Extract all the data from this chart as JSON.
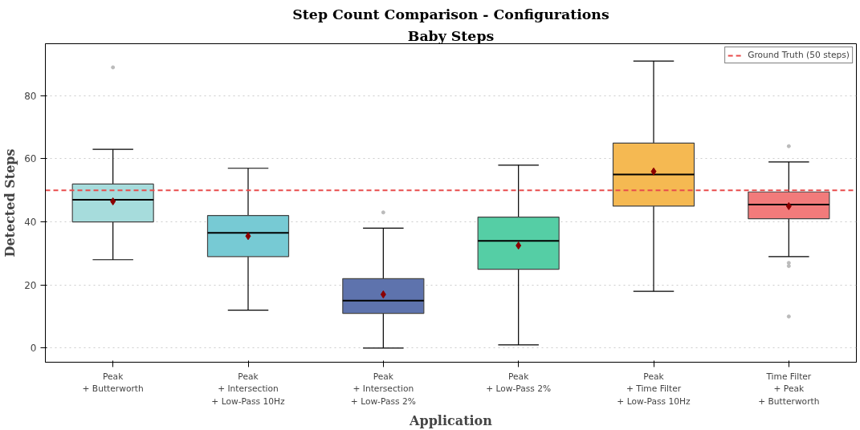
{
  "chart_data": {
    "type": "box",
    "title": "Step Count Comparison - Configurations",
    "subtitle": "Baby Steps",
    "xlabel": "Application",
    "ylabel": "Detected Steps",
    "categories": [
      "Peak\n+ Butterworth",
      "Peak\n+ Intersection\n+ Low-Pass 10Hz",
      "Peak\n+ Intersection\n+ Low-Pass 2%",
      "Peak\n+ Low-Pass 2%",
      "Peak\n+ Time Filter\n+ Low-Pass 10Hz",
      "Time Filter\n+ Peak\n+ Butterworth"
    ],
    "colors": [
      "#a6dcdc",
      "#77cad4",
      "#5e73ad",
      "#55cea5",
      "#f5b952",
      "#f27b7b"
    ],
    "boxes": [
      {
        "low": 28,
        "q1": 40,
        "median": 47,
        "q3": 52,
        "high": 63,
        "mean": 46.5,
        "outliers": [
          89
        ]
      },
      {
        "low": 12,
        "q1": 29,
        "median": 36.5,
        "q3": 42,
        "high": 57,
        "mean": 35.5
      },
      {
        "low": 0,
        "q1": 11,
        "median": 15,
        "q3": 22,
        "high": 38,
        "mean": 17,
        "outliers": [
          43
        ]
      },
      {
        "low": 1,
        "q1": 25,
        "median": 34,
        "q3": 41.5,
        "high": 58,
        "mean": 32.5
      },
      {
        "low": 18,
        "q1": 45,
        "median": 55,
        "q3": 65,
        "high": 91,
        "mean": 56
      },
      {
        "low": 29,
        "q1": 41,
        "median": 45.5,
        "q3": 49.5,
        "high": 59,
        "mean": 45,
        "outliers": [
          64,
          27,
          26,
          10
        ]
      }
    ],
    "ylim": [
      -4.5,
      96.5
    ],
    "yticks": [
      0,
      20,
      40,
      60,
      80
    ],
    "grid": "y",
    "legend": "top right",
    "ref_lines": [
      {
        "axis": "y",
        "value": 50,
        "label": "Ground Truth (50 steps)",
        "color": "#e84c4c",
        "line_style": "dashed"
      }
    ]
  }
}
